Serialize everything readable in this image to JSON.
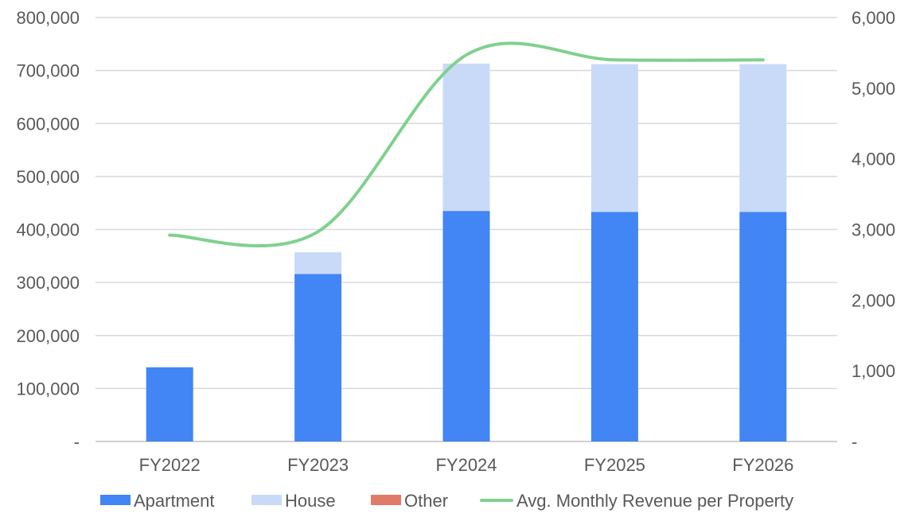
{
  "chart_data": {
    "type": "bar",
    "stacked": true,
    "categories": [
      "FY2022",
      "FY2023",
      "FY2024",
      "FY2025",
      "FY2026"
    ],
    "series": [
      {
        "name": "Apartment",
        "type": "bar",
        "axis": "left",
        "color": "#4285f4",
        "values": [
          140000,
          316000,
          435000,
          433000,
          433000
        ]
      },
      {
        "name": "House",
        "type": "bar",
        "axis": "left",
        "color": "#c9daf8",
        "values": [
          0,
          41000,
          278000,
          279000,
          279000
        ]
      },
      {
        "name": "Other",
        "type": "bar",
        "axis": "left",
        "color": "#e07b67",
        "values": [
          0,
          0,
          0,
          0,
          0
        ]
      },
      {
        "name": "Avg. Monthly Revenue per Property",
        "type": "line",
        "smooth": true,
        "axis": "right",
        "color": "#7fd18d",
        "values": [
          2920,
          2970,
          5470,
          5400,
          5400
        ]
      }
    ],
    "y_left": {
      "lim": [
        0,
        800000
      ],
      "ticks": [
        0,
        100000,
        200000,
        300000,
        400000,
        500000,
        600000,
        700000,
        800000
      ],
      "tick_labels": [
        "-",
        "100,000",
        "200,000",
        "300,000",
        "400,000",
        "500,000",
        "600,000",
        "700,000",
        "800,000"
      ]
    },
    "y_right": {
      "lim": [
        0,
        6000
      ],
      "ticks": [
        0,
        1000,
        2000,
        3000,
        4000,
        5000,
        6000
      ],
      "tick_labels": [
        "-",
        "1,000",
        "2,000",
        "3,000",
        "4,000",
        "5,000",
        "6,000"
      ]
    },
    "grid": true,
    "legend": "bottom"
  }
}
